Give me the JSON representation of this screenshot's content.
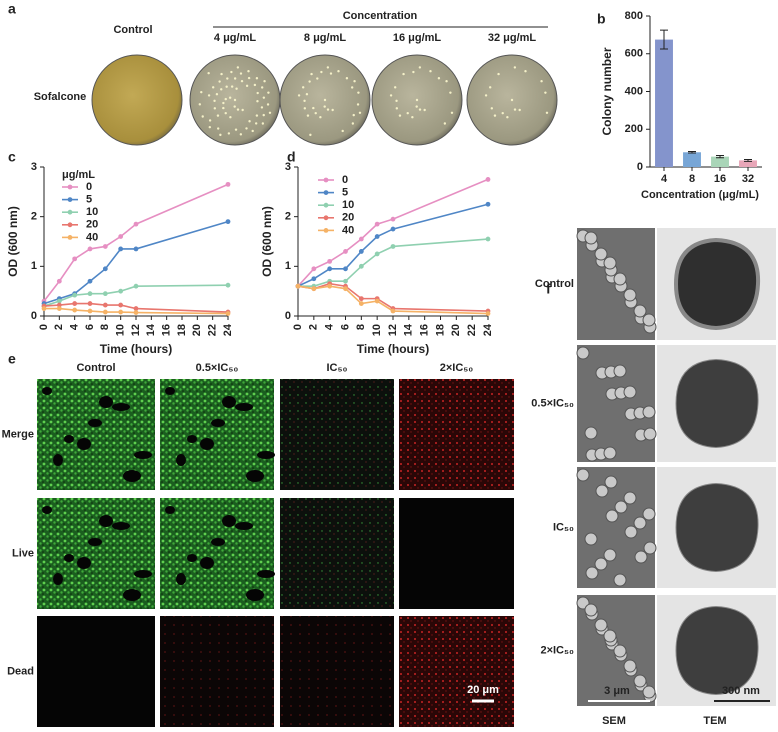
{
  "panel_a": {
    "label": "a",
    "column_header": "Control",
    "group_header": "Concentration",
    "doses": [
      "4 μg/mL",
      "8 μg/mL",
      "16 μg/mL",
      "32 μg/mL"
    ],
    "row_label": "Sofalcone"
  },
  "chart_data": [
    {
      "type": "bar",
      "panel": "b",
      "x_label": "Concentration (μg/mL)",
      "y_label": "Colony number",
      "categories": [
        "4",
        "8",
        "16",
        "32"
      ],
      "values": [
        675,
        78,
        55,
        35
      ],
      "errors": [
        50,
        4,
        6,
        5
      ],
      "colors": [
        "#8494cc",
        "#78a6d6",
        "#a9d5b8",
        "#e8a6b8"
      ],
      "ylim": [
        0,
        800
      ],
      "yticks": [
        0,
        200,
        400,
        600,
        800
      ]
    },
    {
      "type": "line",
      "panel": "c",
      "x_label": "Time (hours)",
      "y_label": "OD (600 nm)",
      "legend_title": "μg/mL",
      "x": [
        0,
        2,
        4,
        6,
        8,
        10,
        12,
        24
      ],
      "series": [
        {
          "name": "0",
          "color": "#e68fc2",
          "values": [
            0.3,
            0.7,
            1.15,
            1.35,
            1.4,
            1.6,
            1.85,
            2.65
          ]
        },
        {
          "name": "5",
          "color": "#4f86c6",
          "values": [
            0.25,
            0.35,
            0.45,
            0.7,
            0.95,
            1.35,
            1.35,
            1.9
          ]
        },
        {
          "name": "10",
          "color": "#8fd0b0",
          "values": [
            0.2,
            0.3,
            0.42,
            0.45,
            0.45,
            0.5,
            0.6,
            0.62
          ]
        },
        {
          "name": "20",
          "color": "#e8766e",
          "values": [
            0.2,
            0.22,
            0.25,
            0.25,
            0.22,
            0.22,
            0.15,
            0.08
          ]
        },
        {
          "name": "40",
          "color": "#f5b266",
          "values": [
            0.15,
            0.15,
            0.12,
            0.1,
            0.08,
            0.08,
            0.07,
            0.05
          ]
        }
      ],
      "xlim": [
        0,
        24
      ],
      "xticks": [
        0,
        2,
        4,
        6,
        8,
        10,
        12,
        14,
        16,
        18,
        20,
        22,
        24
      ],
      "ylim": [
        0,
        3
      ],
      "yticks": [
        0,
        1,
        2,
        3
      ]
    },
    {
      "type": "line",
      "panel": "d",
      "x_label": "Time (hours)",
      "y_label": "OD (600 nm)",
      "x": [
        0,
        2,
        4,
        6,
        8,
        10,
        12,
        24
      ],
      "series": [
        {
          "name": "0",
          "color": "#e68fc2",
          "values": [
            0.6,
            0.95,
            1.1,
            1.3,
            1.55,
            1.85,
            1.95,
            2.75
          ]
        },
        {
          "name": "5",
          "color": "#4f86c6",
          "values": [
            0.6,
            0.75,
            0.95,
            0.95,
            1.3,
            1.6,
            1.75,
            2.25
          ]
        },
        {
          "name": "10",
          "color": "#8fd0b0",
          "values": [
            0.6,
            0.6,
            0.7,
            0.7,
            1.0,
            1.25,
            1.4,
            1.55
          ]
        },
        {
          "name": "20",
          "color": "#e8766e",
          "values": [
            0.6,
            0.55,
            0.65,
            0.6,
            0.35,
            0.35,
            0.15,
            0.1
          ]
        },
        {
          "name": "40",
          "color": "#f5b266",
          "values": [
            0.6,
            0.55,
            0.6,
            0.55,
            0.25,
            0.3,
            0.1,
            0.05
          ]
        }
      ],
      "xlim": [
        0,
        24
      ],
      "xticks": [
        0,
        2,
        4,
        6,
        8,
        10,
        12,
        14,
        16,
        18,
        20,
        22,
        24
      ],
      "ylim": [
        0,
        3
      ],
      "yticks": [
        0,
        1,
        2,
        3
      ]
    }
  ],
  "panel_e": {
    "label": "e",
    "columns": [
      "Control",
      "0.5×IC₅₀",
      "IC₅₀",
      "2×IC₅₀"
    ],
    "rows": [
      "Merge",
      "Live",
      "Dead"
    ],
    "scale_bar": "20 μm"
  },
  "panel_f": {
    "label": "f",
    "rows": [
      "Control",
      "0.5×IC₅₀",
      "IC₅₀",
      "2×IC₅₀"
    ],
    "columns": [
      "SEM",
      "TEM"
    ],
    "scale_bars": [
      "3 μm",
      "300 nm"
    ]
  }
}
